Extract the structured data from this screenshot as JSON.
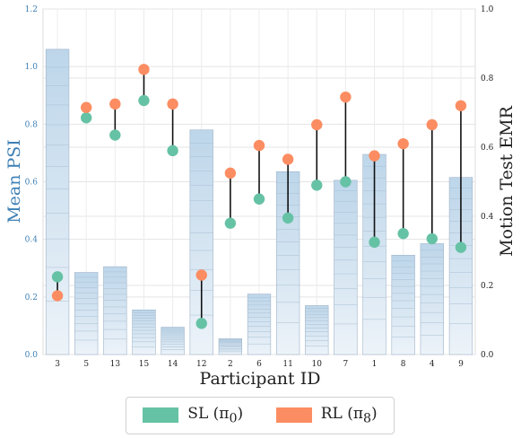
{
  "chart_data": {
    "type": "bar",
    "xlabel": "Participant ID",
    "ylabel_left": "Mean PSI",
    "ylabel_right": "Motion Test EMR",
    "ylim_left": [
      0,
      1.2
    ],
    "ylim_right": [
      0,
      1.0
    ],
    "yticks_left": [
      "0.0",
      "0.2",
      "0.4",
      "0.6",
      "0.8",
      "1.0",
      "1.2"
    ],
    "yticks_right": [
      "0.0",
      "0.2",
      "0.4",
      "0.6",
      "0.8",
      "1.0"
    ],
    "categories": [
      "3",
      "5",
      "13",
      "15",
      "14",
      "12",
      "2",
      "6",
      "11",
      "10",
      "7",
      "1",
      "8",
      "4",
      "9"
    ],
    "bars": {
      "axis": "left",
      "values": [
        1.06,
        0.285,
        0.305,
        0.155,
        0.095,
        0.78,
        0.055,
        0.21,
        0.635,
        0.17,
        0.605,
        0.695,
        0.345,
        0.385,
        0.615
      ]
    },
    "series": [
      {
        "name": "SL (π0)",
        "axis": "right",
        "color": "#66c2a5",
        "values": [
          0.225,
          0.685,
          0.635,
          0.735,
          0.59,
          0.09,
          0.38,
          0.45,
          0.395,
          0.49,
          0.5,
          0.325,
          0.35,
          0.335,
          0.31
        ]
      },
      {
        "name": "RL (π8)",
        "axis": "right",
        "color": "#fc8d62",
        "values": [
          0.17,
          0.715,
          0.725,
          0.825,
          0.725,
          0.23,
          0.525,
          0.605,
          0.565,
          0.665,
          0.745,
          0.575,
          0.61,
          0.665,
          0.72
        ]
      }
    ],
    "grid": true,
    "legend": "bottom-center"
  },
  "legend": {
    "sl_label": "SL (π",
    "sl_sub": "0",
    "rl_label": "RL (π",
    "rl_sub": "8"
  }
}
